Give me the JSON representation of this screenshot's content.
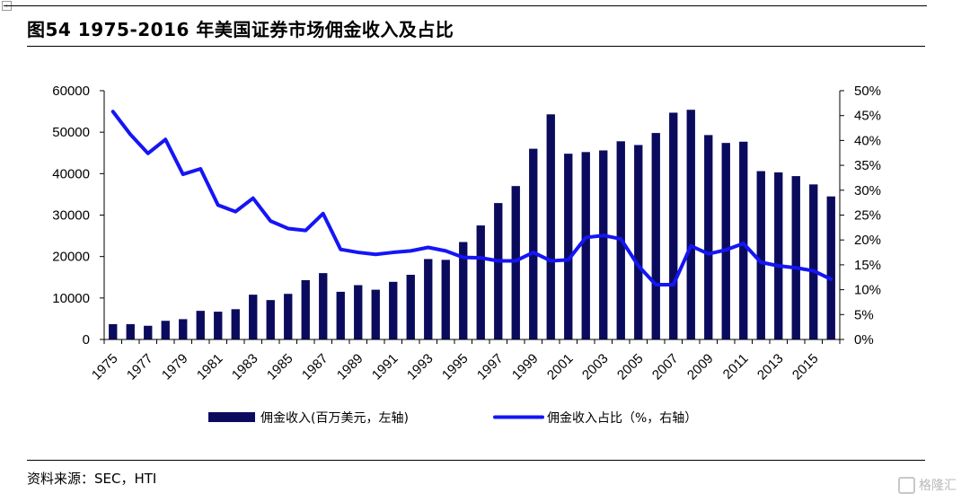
{
  "header": {
    "title": "图54 1975-2016 年美国证券市场佣金收入及占比"
  },
  "footer": {
    "source": "资料来源：SEC，HTI",
    "watermark": "格隆汇"
  },
  "chart_data": {
    "type": "bar+line",
    "title": "图54 1975-2016 年美国证券市场佣金收入及占比",
    "x": [
      1975,
      1976,
      1977,
      1978,
      1979,
      1980,
      1981,
      1982,
      1983,
      1984,
      1985,
      1986,
      1987,
      1988,
      1989,
      1990,
      1991,
      1992,
      1993,
      1994,
      1995,
      1996,
      1997,
      1998,
      1999,
      2000,
      2001,
      2002,
      2003,
      2004,
      2005,
      2006,
      2007,
      2008,
      2009,
      2010,
      2011,
      2012,
      2013,
      2014,
      2015,
      2016
    ],
    "x_tick_labels": [
      "1975",
      "1977",
      "1979",
      "1981",
      "1983",
      "1985",
      "1987",
      "1989",
      "1991",
      "1993",
      "1995",
      "1997",
      "1999",
      "2001",
      "2003",
      "2005",
      "2007",
      "2009",
      "2011",
      "2013",
      "2015"
    ],
    "series": [
      {
        "name": "佣金收入(百万美元，左轴)",
        "type": "bar",
        "axis": "left",
        "color": "#0b0b5e",
        "values": [
          3700,
          3700,
          3300,
          4500,
          4900,
          6900,
          6700,
          7300,
          10800,
          9500,
          11000,
          14300,
          16000,
          11500,
          13100,
          12000,
          13900,
          15600,
          19400,
          19200,
          23500,
          27500,
          32900,
          37000,
          46000,
          54300,
          44800,
          45200,
          45600,
          47800,
          46900,
          49800,
          54700,
          55400,
          49300,
          47400,
          47700,
          40600,
          40300,
          39400,
          37400,
          34500
        ]
      },
      {
        "name": "佣金收入占比（%，右轴）",
        "type": "line",
        "axis": "right",
        "color": "#1515f5",
        "values": [
          45.8,
          41.2,
          37.4,
          40.2,
          33.2,
          34.3,
          27.0,
          25.7,
          28.4,
          23.8,
          22.3,
          21.9,
          25.3,
          18.1,
          17.5,
          17.1,
          17.5,
          17.8,
          18.5,
          17.8,
          16.5,
          16.4,
          15.8,
          15.8,
          17.5,
          15.8,
          16.0,
          20.5,
          20.9,
          20.2,
          14.8,
          11.0,
          11.0,
          18.8,
          17.2,
          18.0,
          19.3,
          15.5,
          14.8,
          14.4,
          13.8,
          12.1
        ]
      }
    ],
    "y_left": {
      "min": 0,
      "max": 60000,
      "ticks": [
        "0",
        "10000",
        "20000",
        "30000",
        "40000",
        "50000",
        "60000"
      ]
    },
    "y_right": {
      "min": 0,
      "max": 50,
      "ticks": [
        "0%",
        "5%",
        "10%",
        "15%",
        "20%",
        "25%",
        "30%",
        "35%",
        "40%",
        "45%",
        "50%"
      ]
    },
    "legend": [
      {
        "label": "佣金收入(百万美元，左轴)",
        "kind": "bar",
        "color": "#0b0b5e"
      },
      {
        "label": "佣金收入占比（%，右轴）",
        "kind": "line",
        "color": "#1515f5"
      }
    ],
    "legend_position": "bottom-center",
    "grid": false
  }
}
